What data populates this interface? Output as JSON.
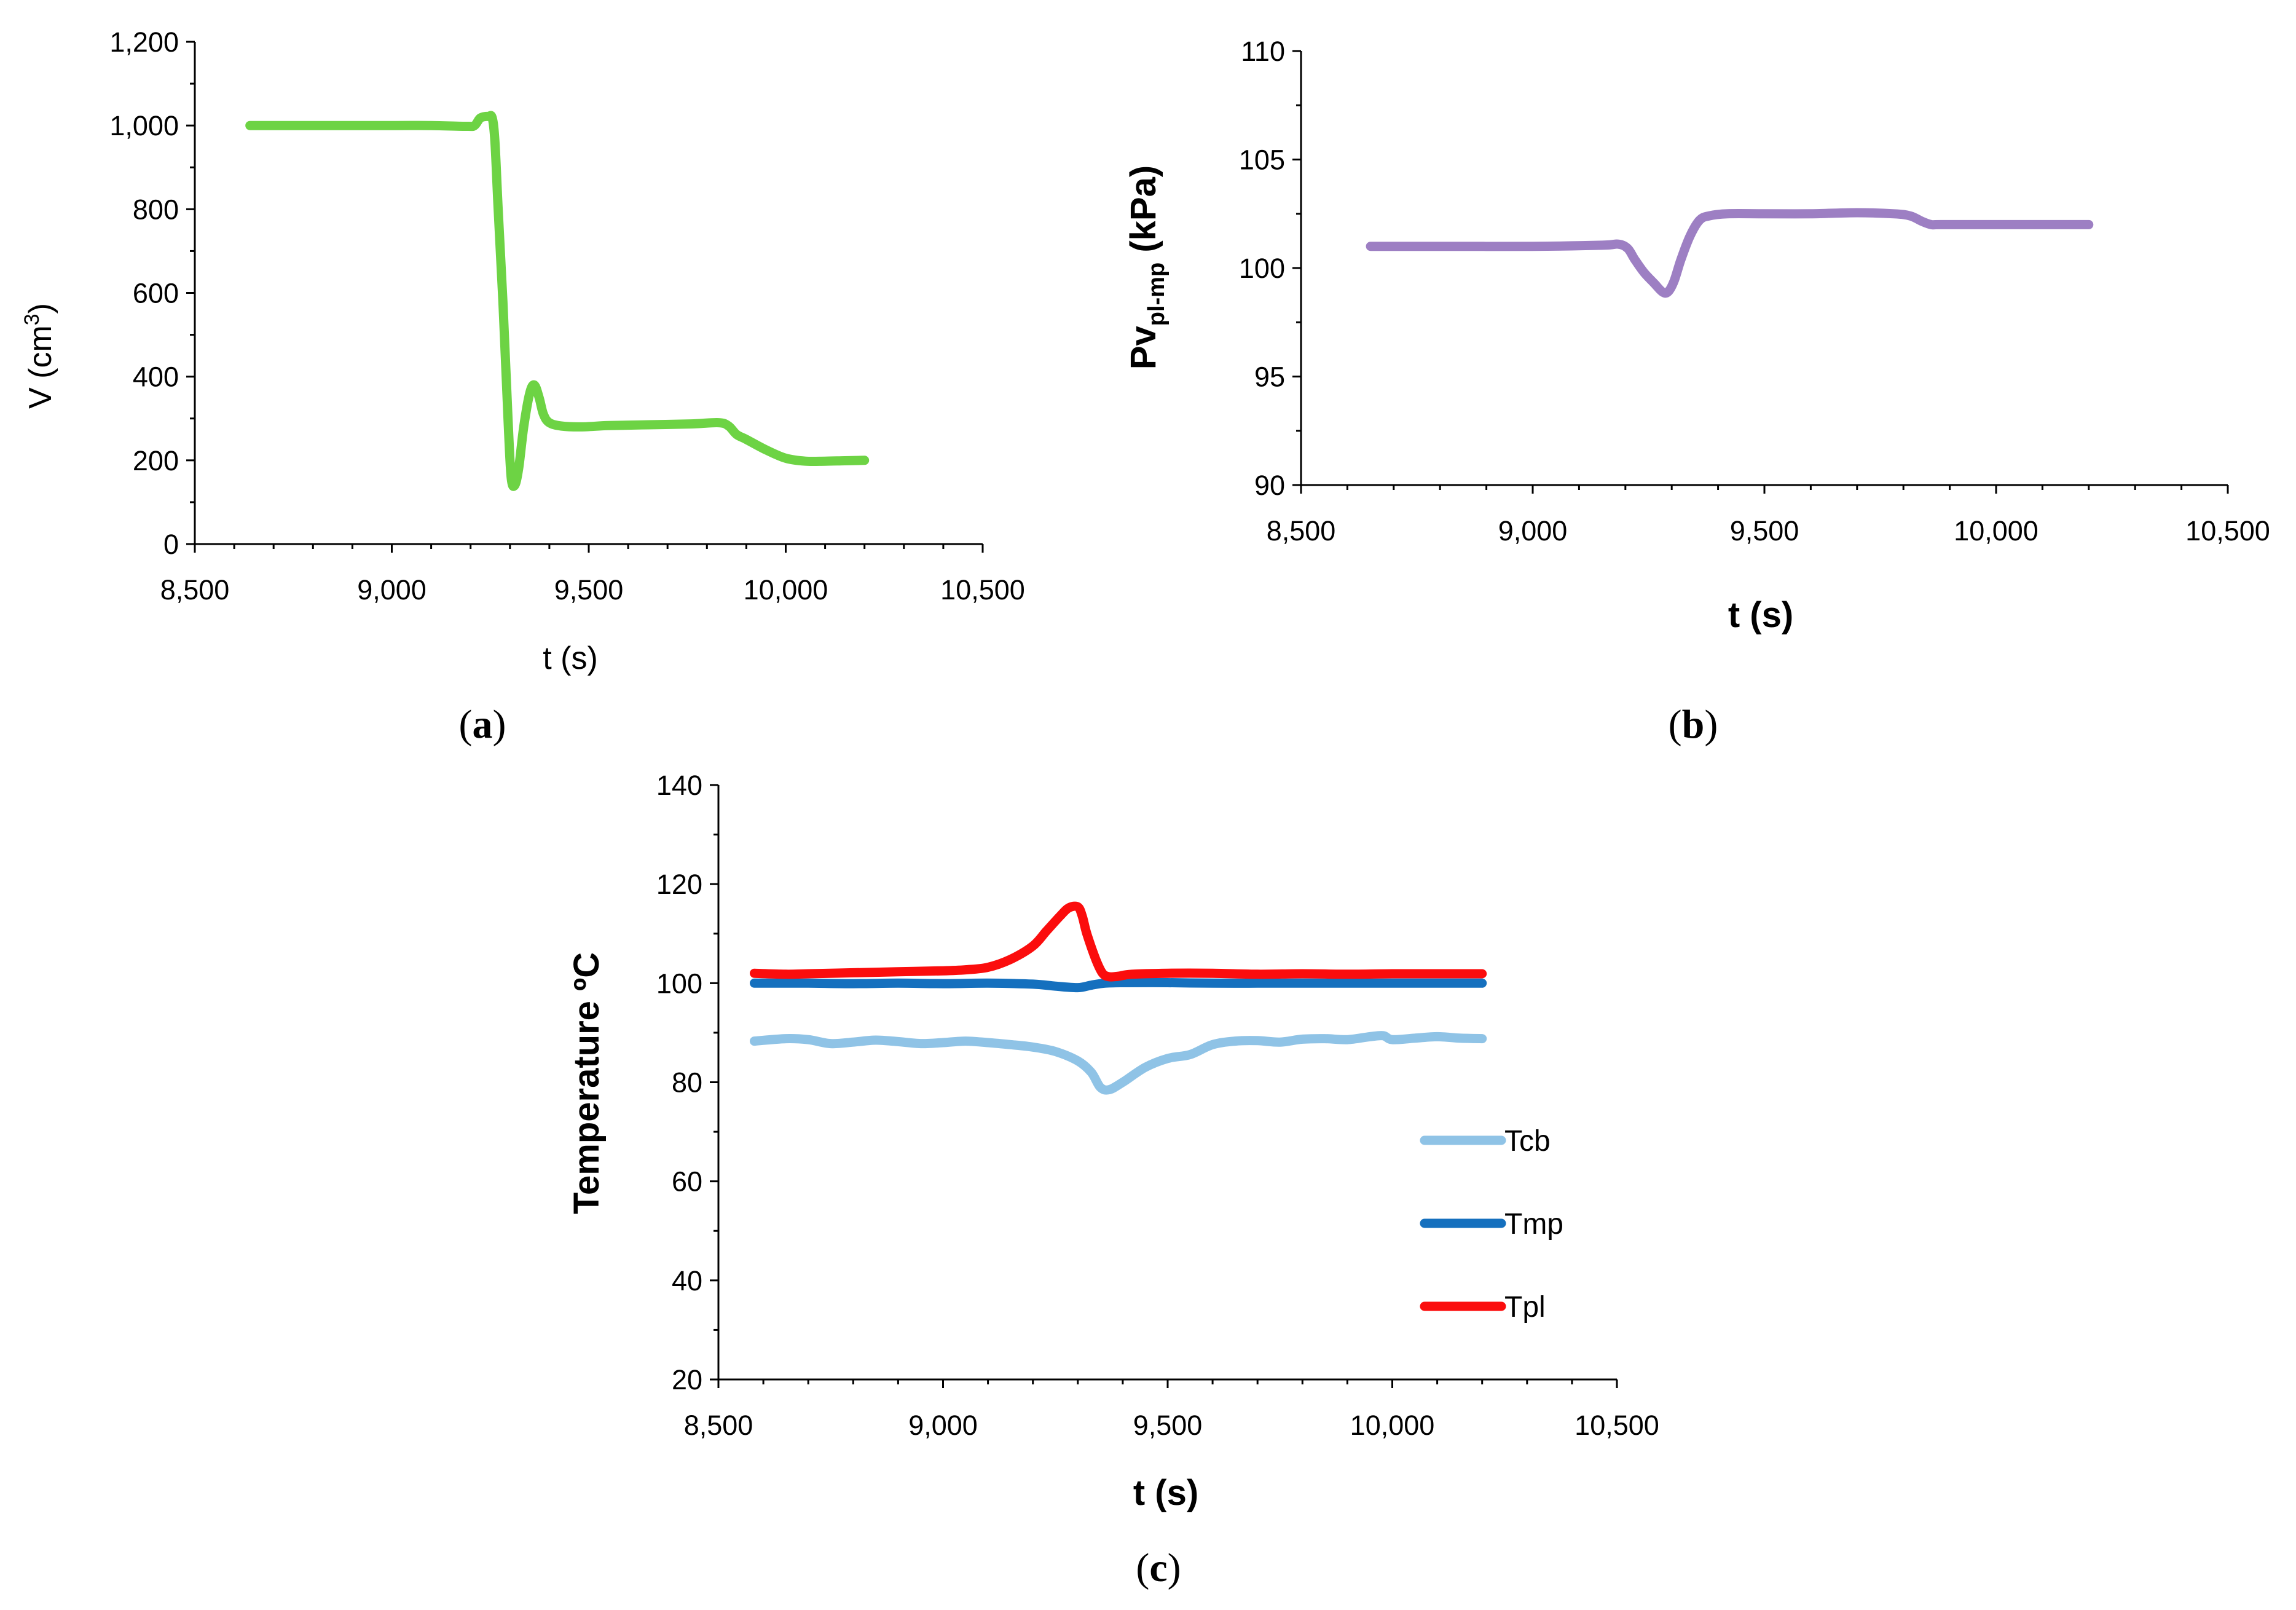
{
  "chart_data": [
    {
      "type": "line",
      "panel": "(a)",
      "caption_open": "(",
      "caption_letter": "a",
      "caption_close": ")",
      "xlabel": "t (s)",
      "ylabel_main": "V (cm",
      "ylabel_sup": "3",
      "ylabel_close": ")",
      "xlim": [
        8500,
        10500
      ],
      "ylim": [
        0,
        1200
      ],
      "xticks": [
        8500,
        9000,
        9500,
        10000,
        10500
      ],
      "xtick_labels": [
        "8,500",
        "9,000",
        "9,500",
        "10,000",
        "10,500"
      ],
      "yticks": [
        0,
        200,
        400,
        600,
        800,
        1000,
        1200
      ],
      "ytick_labels": [
        "0",
        "200",
        "400",
        "600",
        "800",
        "1,000",
        "1,200"
      ],
      "series": [
        {
          "name": "V",
          "color": "#6dd344",
          "x": [
            8640,
            8800,
            9000,
            9100,
            9190,
            9210,
            9225,
            9245,
            9255,
            9262,
            9270,
            9282,
            9295,
            9303,
            9312,
            9322,
            9335,
            9350,
            9362,
            9374,
            9385,
            9400,
            9430,
            9480,
            9550,
            9650,
            9760,
            9830,
            9855,
            9875,
            9900,
            9950,
            10000,
            10050,
            10100,
            10150,
            10200
          ],
          "y": [
            1000,
            1000,
            1000,
            1000,
            998,
            1000,
            1018,
            1022,
            1018,
            960,
            800,
            580,
            300,
            160,
            140,
            180,
            280,
            360,
            380,
            350,
            310,
            290,
            282,
            280,
            283,
            285,
            287,
            290,
            282,
            262,
            250,
            225,
            205,
            198,
            198,
            199,
            200
          ]
        }
      ]
    },
    {
      "type": "line",
      "panel": "(b)",
      "caption_open": "(",
      "caption_letter": "b",
      "caption_close": ")",
      "xlabel": "t (s)",
      "ylabel_main": "Pv",
      "ylabel_sub": "pl-mp",
      "ylabel_tail": " (kPa)",
      "xlim": [
        8500,
        10500
      ],
      "ylim": [
        90,
        110
      ],
      "xticks": [
        8500,
        9000,
        9500,
        10000,
        10500
      ],
      "xtick_labels": [
        "8,500",
        "9,000",
        "9,500",
        "10,000",
        "10,500"
      ],
      "yticks": [
        90,
        95,
        100,
        105,
        110
      ],
      "ytick_labels": [
        "90",
        "95",
        "100",
        "105",
        "110"
      ],
      "series": [
        {
          "name": "Pv",
          "color": "#9d7fc3",
          "x": [
            8650,
            8800,
            9000,
            9150,
            9185,
            9205,
            9220,
            9240,
            9262,
            9280,
            9292,
            9305,
            9320,
            9340,
            9360,
            9380,
            9420,
            9500,
            9600,
            9700,
            9780,
            9815,
            9840,
            9860,
            9880,
            10000,
            10100,
            10200
          ],
          "y": [
            101,
            101,
            101,
            101.05,
            101.1,
            100.9,
            100.4,
            99.8,
            99.3,
            98.9,
            98.9,
            99.4,
            100.4,
            101.5,
            102.2,
            102.4,
            102.5,
            102.5,
            102.5,
            102.55,
            102.5,
            102.4,
            102.15,
            102,
            102,
            102,
            102,
            102
          ]
        }
      ]
    },
    {
      "type": "line",
      "panel": "(c)",
      "caption_open": "(",
      "caption_letter": "c",
      "caption_close": ")",
      "xlabel": "t (s)",
      "ylabel": "Temperature ºC",
      "xlim": [
        8500,
        10500
      ],
      "ylim": [
        20,
        140
      ],
      "xticks": [
        8500,
        9000,
        9500,
        10000,
        10500
      ],
      "xtick_labels": [
        "8,500",
        "9,000",
        "9,500",
        "10,000",
        "10,500"
      ],
      "yticks": [
        20,
        40,
        60,
        80,
        100,
        120,
        140
      ],
      "ytick_labels": [
        "20",
        "40",
        "60",
        "80",
        "100",
        "120",
        "140"
      ],
      "legend_position": "right",
      "series": [
        {
          "name": "Tcb",
          "color": "#8fc3e6",
          "x": [
            8580,
            8650,
            8700,
            8750,
            8800,
            8850,
            8900,
            8950,
            9000,
            9050,
            9100,
            9150,
            9200,
            9250,
            9300,
            9330,
            9350,
            9370,
            9400,
            9450,
            9500,
            9550,
            9600,
            9650,
            9700,
            9750,
            9800,
            9850,
            9900,
            9950,
            9980,
            10000,
            10050,
            10100,
            10150,
            10200
          ],
          "y": [
            88.3,
            88.8,
            88.6,
            87.8,
            88.1,
            88.5,
            88.2,
            87.8,
            88.0,
            88.3,
            88.0,
            87.6,
            87.1,
            86.2,
            84.3,
            82.0,
            79.0,
            78.5,
            80.0,
            83.0,
            84.8,
            85.6,
            87.6,
            88.3,
            88.4,
            88.1,
            88.7,
            88.8,
            88.6,
            89.2,
            89.4,
            88.6,
            88.9,
            89.2,
            88.9,
            88.8
          ]
        },
        {
          "name": "Tmp",
          "color": "#1570be",
          "x": [
            8580,
            8700,
            8800,
            8900,
            9000,
            9100,
            9200,
            9250,
            9300,
            9330,
            9360,
            9400,
            9500,
            9600,
            9700,
            9800,
            9900,
            10000,
            10100,
            10200
          ],
          "y": [
            100,
            100,
            99.9,
            100,
            99.9,
            100,
            99.8,
            99.4,
            99.1,
            99.6,
            100,
            100.1,
            100.1,
            100,
            100,
            100,
            100,
            100,
            100,
            100
          ]
        },
        {
          "name": "Tpl",
          "color": "#fb0d0d",
          "x": [
            8580,
            8650,
            8700,
            8800,
            8900,
            9000,
            9050,
            9100,
            9150,
            9200,
            9230,
            9260,
            9280,
            9300,
            9310,
            9320,
            9340,
            9355,
            9370,
            9390,
            9420,
            9500,
            9600,
            9700,
            9800,
            9900,
            10000,
            10100,
            10200
          ],
          "y": [
            102,
            101.8,
            101.9,
            102.1,
            102.3,
            102.5,
            102.7,
            103.2,
            104.8,
            107.5,
            110.5,
            113.5,
            115.2,
            115.4,
            113.5,
            110.0,
            104.8,
            102.0,
            101.3,
            101.4,
            101.8,
            102.0,
            102.0,
            101.8,
            101.9,
            101.8,
            101.9,
            101.9,
            101.9
          ]
        }
      ]
    }
  ]
}
